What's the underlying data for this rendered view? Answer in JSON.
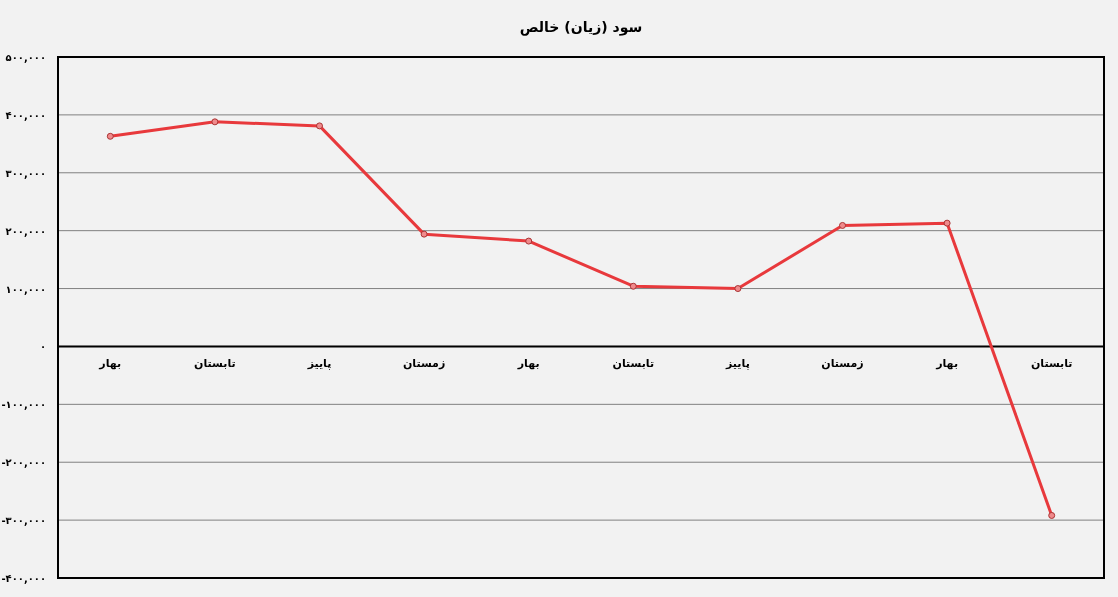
{
  "chart_data": {
    "type": "line",
    "title": "سود (زیان) خالص",
    "categories": [
      "بهار",
      "تابستان",
      "پاییز",
      "زمستان",
      "بهار",
      "تابستان",
      "پاییز",
      "زمستان",
      "بهار",
      "تابستان"
    ],
    "series": [
      {
        "color": "#e8393c",
        "values": [
          363000,
          388000,
          381000,
          194000,
          182000,
          104000,
          100000,
          209000,
          213000,
          -292000
        ]
      }
    ],
    "ylim": [
      -400000,
      500000
    ],
    "yticks": [
      {
        "value": -400000,
        "label": "-۴۰۰,۰۰۰"
      },
      {
        "value": -300000,
        "label": "-۳۰۰,۰۰۰"
      },
      {
        "value": -200000,
        "label": "-۲۰۰,۰۰۰"
      },
      {
        "value": -100000,
        "label": "-۱۰۰,۰۰۰"
      },
      {
        "value": 0,
        "label": "۰"
      },
      {
        "value": 100000,
        "label": "۱۰۰,۰۰۰"
      },
      {
        "value": 200000,
        "label": "۲۰۰,۰۰۰"
      },
      {
        "value": 300000,
        "label": "۳۰۰,۰۰۰"
      },
      {
        "value": 400000,
        "label": "۴۰۰,۰۰۰"
      },
      {
        "value": 500000,
        "label": "۵۰۰,۰۰۰"
      }
    ],
    "grid": "y",
    "marker": "circle",
    "line_style": "solid"
  }
}
